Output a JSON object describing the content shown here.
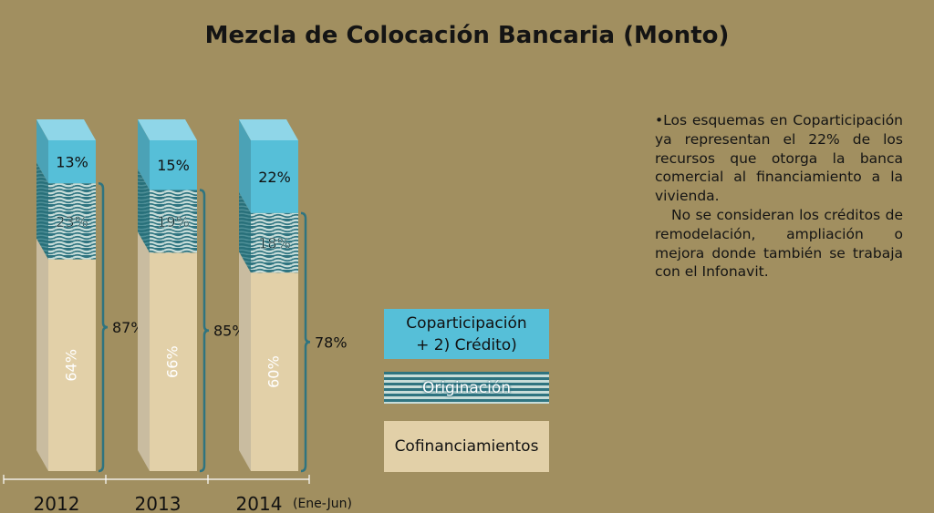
{
  "title": "Mezcla de Colocación Bancaria (Monto)",
  "chart_data": {
    "type": "bar",
    "stacked": true,
    "categories": [
      "2012",
      "2013",
      "2014"
    ],
    "category_note": "(Ene-Jun)",
    "series": [
      {
        "name": "Cofinanciamientos",
        "values": [
          64,
          66,
          60
        ],
        "labels": [
          "64%",
          "66%",
          "60%"
        ]
      },
      {
        "name": "Originación",
        "values": [
          23,
          19,
          18
        ],
        "labels": [
          "23%",
          "19%",
          "18%"
        ]
      },
      {
        "name": "Coparticipación + 2) Crédito)",
        "values": [
          13,
          15,
          22
        ],
        "labels": [
          "13%",
          "15%",
          "22%"
        ]
      }
    ],
    "bracket_totals": [
      "87%",
      "85%",
      "78%"
    ],
    "ylim": [
      0,
      100
    ]
  },
  "legend": {
    "coparticipacion_line1": "Coparticipación",
    "coparticipacion_line2": "+ 2) Crédito)",
    "originacion": "Originación",
    "cofinanciamientos": "Cofinanciamientos"
  },
  "note": {
    "paragraph1": "•Los esquemas en Coparticipación ya representan el 22% de los recursos que otorga la banca comercial al financiamiento a la vivienda.",
    "paragraph2": "No se consideran los créditos de remodelación, ampliación o mejora donde también se trabaja con el Infonavit."
  },
  "colors": {
    "background": "#a18f60",
    "cofin_front": "#e2d0a8",
    "cofin_side": "#c9bca0",
    "orig_front": "#2f7480",
    "orig_side": "#28707a",
    "copart_front": "#56bfd8",
    "copart_side": "#4ba2b6",
    "copart_top": "#8fd6e8",
    "bracket": "#2f7480"
  }
}
